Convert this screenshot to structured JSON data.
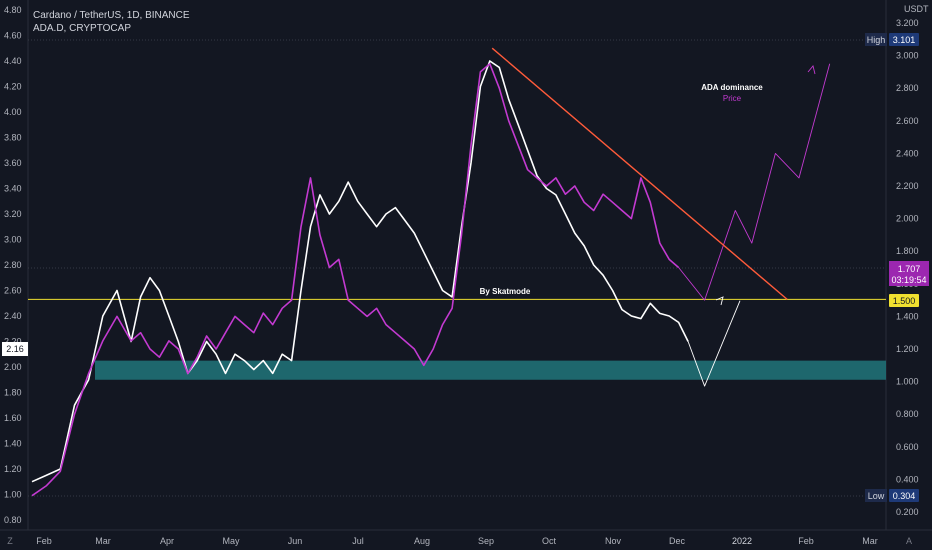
{
  "header": {
    "symbol_line": "Cardano / TetherUS, 1D, BINANCE",
    "overlay_line": "ADA.D, CRYPTOCAP"
  },
  "currency_label": "USDT",
  "side_buttons": {
    "bottom_left": "Z",
    "bottom_right": "A",
    "top_left": "2.16"
  },
  "annotations": {
    "dominance_title": "ADA dominance",
    "dominance_sub": "Price",
    "author": "By Skatmode"
  },
  "badges": {
    "high_label": "High",
    "high_value": "3.101",
    "low_label": "Low",
    "low_value": "0.304",
    "last_price": "1.707",
    "countdown": "03:19:54",
    "level": "1.500"
  },
  "chart_data": {
    "type": "line",
    "x_ticks": [
      "Feb",
      "Mar",
      "Apr",
      "May",
      "Jun",
      "Jul",
      "Aug",
      "Sep",
      "Oct",
      "Nov",
      "Dec",
      "2022",
      "Feb",
      "Mar"
    ],
    "left_axis": {
      "ticks": [
        "4.80",
        "4.60",
        "4.40",
        "4.20",
        "4.00",
        "3.80",
        "3.60",
        "3.40",
        "3.20",
        "3.00",
        "2.80",
        "2.60",
        "2.40",
        "2.20",
        "2.00",
        "1.80",
        "1.60",
        "1.40",
        "1.20",
        "1.00",
        "0.80"
      ],
      "range": [
        0.8,
        4.8
      ]
    },
    "right_axis": {
      "ticks": [
        "3.200",
        "3.000",
        "2.800",
        "2.600",
        "2.400",
        "2.200",
        "2.000",
        "1.800",
        "1.600",
        "1.400",
        "1.200",
        "1.000",
        "0.800",
        "0.600",
        "0.400",
        "0.200"
      ],
      "range": [
        0.2,
        3.2
      ]
    },
    "series": [
      {
        "name": "ADA.D",
        "color": "#ffffff",
        "axis": "left",
        "points": [
          [
            0,
            1.1
          ],
          [
            6,
            1.15
          ],
          [
            12,
            1.2
          ],
          [
            18,
            1.7
          ],
          [
            24,
            1.9
          ],
          [
            30,
            2.4
          ],
          [
            36,
            2.6
          ],
          [
            42,
            2.2
          ],
          [
            46,
            2.55
          ],
          [
            50,
            2.7
          ],
          [
            54,
            2.6
          ],
          [
            58,
            2.4
          ],
          [
            62,
            2.2
          ],
          [
            66,
            1.95
          ],
          [
            70,
            2.05
          ],
          [
            74,
            2.2
          ],
          [
            78,
            2.1
          ],
          [
            82,
            1.95
          ],
          [
            86,
            2.1
          ],
          [
            90,
            2.05
          ],
          [
            94,
            1.98
          ],
          [
            98,
            2.05
          ],
          [
            102,
            1.95
          ],
          [
            106,
            2.1
          ],
          [
            110,
            2.05
          ],
          [
            114,
            2.6
          ],
          [
            118,
            3.1
          ],
          [
            122,
            3.35
          ],
          [
            126,
            3.2
          ],
          [
            130,
            3.3
          ],
          [
            134,
            3.45
          ],
          [
            138,
            3.3
          ],
          [
            142,
            3.2
          ],
          [
            146,
            3.1
          ],
          [
            150,
            3.2
          ],
          [
            154,
            3.25
          ],
          [
            158,
            3.15
          ],
          [
            162,
            3.05
          ],
          [
            166,
            2.9
          ],
          [
            170,
            2.75
          ],
          [
            174,
            2.6
          ],
          [
            178,
            2.55
          ],
          [
            182,
            3.1
          ],
          [
            186,
            3.6
          ],
          [
            190,
            4.2
          ],
          [
            194,
            4.4
          ],
          [
            198,
            4.35
          ],
          [
            202,
            4.1
          ],
          [
            206,
            3.9
          ],
          [
            210,
            3.7
          ],
          [
            214,
            3.5
          ],
          [
            218,
            3.4
          ],
          [
            222,
            3.35
          ],
          [
            226,
            3.2
          ],
          [
            230,
            3.05
          ],
          [
            234,
            2.95
          ],
          [
            238,
            2.8
          ],
          [
            242,
            2.72
          ],
          [
            246,
            2.6
          ],
          [
            250,
            2.45
          ],
          [
            254,
            2.4
          ],
          [
            258,
            2.38
          ],
          [
            262,
            2.5
          ],
          [
            266,
            2.42
          ],
          [
            270,
            2.4
          ],
          [
            274,
            2.35
          ],
          [
            278,
            2.2
          ]
        ]
      },
      {
        "name": "ADA/USDT",
        "color": "#c33ad1",
        "axis": "right",
        "points": [
          [
            0,
            0.3
          ],
          [
            6,
            0.36
          ],
          [
            12,
            0.45
          ],
          [
            18,
            0.8
          ],
          [
            24,
            1.05
          ],
          [
            30,
            1.25
          ],
          [
            36,
            1.4
          ],
          [
            42,
            1.25
          ],
          [
            46,
            1.3
          ],
          [
            50,
            1.2
          ],
          [
            54,
            1.15
          ],
          [
            58,
            1.25
          ],
          [
            62,
            1.2
          ],
          [
            66,
            1.05
          ],
          [
            70,
            1.15
          ],
          [
            74,
            1.28
          ],
          [
            78,
            1.2
          ],
          [
            82,
            1.3
          ],
          [
            86,
            1.4
          ],
          [
            90,
            1.35
          ],
          [
            94,
            1.3
          ],
          [
            98,
            1.42
          ],
          [
            102,
            1.35
          ],
          [
            106,
            1.45
          ],
          [
            110,
            1.5
          ],
          [
            114,
            1.95
          ],
          [
            118,
            2.25
          ],
          [
            122,
            1.9
          ],
          [
            126,
            1.7
          ],
          [
            130,
            1.75
          ],
          [
            134,
            1.5
          ],
          [
            138,
            1.45
          ],
          [
            142,
            1.4
          ],
          [
            146,
            1.45
          ],
          [
            150,
            1.35
          ],
          [
            154,
            1.3
          ],
          [
            158,
            1.25
          ],
          [
            162,
            1.2
          ],
          [
            166,
            1.1
          ],
          [
            170,
            1.2
          ],
          [
            174,
            1.35
          ],
          [
            178,
            1.45
          ],
          [
            182,
            1.9
          ],
          [
            186,
            2.45
          ],
          [
            190,
            2.9
          ],
          [
            194,
            2.95
          ],
          [
            198,
            2.8
          ],
          [
            202,
            2.6
          ],
          [
            206,
            2.45
          ],
          [
            210,
            2.3
          ],
          [
            214,
            2.25
          ],
          [
            218,
            2.2
          ],
          [
            222,
            2.25
          ],
          [
            226,
            2.15
          ],
          [
            230,
            2.2
          ],
          [
            234,
            2.1
          ],
          [
            238,
            2.05
          ],
          [
            242,
            2.15
          ],
          [
            246,
            2.1
          ],
          [
            250,
            2.05
          ],
          [
            254,
            2.0
          ],
          [
            258,
            2.25
          ],
          [
            262,
            2.1
          ],
          [
            266,
            1.85
          ],
          [
            270,
            1.75
          ],
          [
            274,
            1.7
          ]
        ]
      }
    ],
    "projections": [
      {
        "color": "#ffffff",
        "axis": "left",
        "points": [
          [
            278,
            2.2
          ],
          [
            285,
            1.85
          ],
          [
            300,
            2.52
          ]
        ]
      },
      {
        "color": "#c33ad1",
        "axis": "right",
        "points": [
          [
            274,
            1.7
          ],
          [
            285,
            1.5
          ],
          [
            298,
            2.05
          ],
          [
            305,
            1.85
          ],
          [
            315,
            2.4
          ],
          [
            325,
            2.25
          ],
          [
            338,
            2.95
          ]
        ]
      }
    ],
    "trendline": {
      "color": "#ff5b3a",
      "axis": "left",
      "points": [
        [
          195,
          4.5
        ],
        [
          320,
          2.53
        ]
      ]
    },
    "horizontal_level": {
      "color": "#f0e030",
      "axis": "left",
      "value": 2.53
    },
    "support_zone": {
      "color": "#1f6c72",
      "axis": "left",
      "range": [
        1.9,
        2.05
      ]
    },
    "x_domain": [
      0,
      380
    ]
  }
}
